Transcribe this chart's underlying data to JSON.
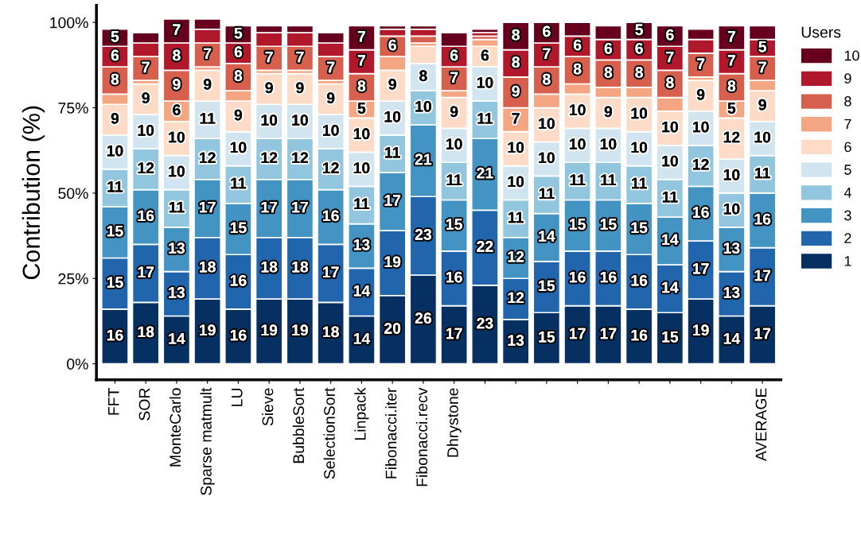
{
  "chart_data": {
    "type": "bar",
    "stacked": true,
    "ylabel": "Contribution (%)",
    "legend_title": "Users",
    "legend": "right",
    "categories": [
      "FFT",
      "SOR",
      "MonteCarlo",
      "Sparse matmult",
      "LU",
      "Sieve",
      "BubbleSort",
      "SelectionSort",
      "Linpack",
      "Fibonacci.iter",
      "Fibonacci.recv",
      "Dhrystone",
      null,
      null,
      null,
      null,
      null,
      null,
      null,
      null,
      null,
      "AVERAGE"
    ],
    "ylim": [
      -4.7,
      105
    ],
    "yticks": [
      {
        "value": 0,
        "label": "0%"
      },
      {
        "value": 25,
        "label": "25%"
      },
      {
        "value": 50,
        "label": "50%"
      },
      {
        "value": 75,
        "label": "75%"
      },
      {
        "value": 100,
        "label": "100%"
      }
    ],
    "grid": false,
    "series": [
      {
        "name": "1",
        "color": "#053061",
        "values": [
          16,
          18,
          14,
          19,
          16,
          19,
          19,
          18,
          14,
          20,
          26,
          17,
          23,
          13,
          15,
          17,
          17,
          16,
          15,
          19,
          14,
          17
        ],
        "value_labels": [
          "16",
          "18",
          "14",
          "19",
          "16",
          "19",
          "19",
          "18",
          "14",
          "20",
          "26",
          "17",
          "23",
          "13",
          "15",
          "17",
          "17",
          "16",
          "15",
          "19",
          "14",
          "17"
        ]
      },
      {
        "name": "2",
        "color": "#2166ac",
        "values": [
          15,
          17,
          13,
          18,
          16,
          18,
          18,
          17,
          14,
          19,
          23,
          16,
          22,
          12,
          15,
          16,
          16,
          16,
          14,
          17,
          13,
          17
        ],
        "value_labels": [
          "15",
          "17",
          "13",
          "18",
          "16",
          "18",
          "18",
          "17",
          "14",
          "19",
          "23",
          "16",
          "22",
          "12",
          "15",
          "16",
          "16",
          "16",
          "14",
          "17",
          "13",
          "17"
        ]
      },
      {
        "name": "3",
        "color": "#4393c3",
        "values": [
          15,
          16,
          13,
          17,
          15,
          17,
          17,
          16,
          13,
          17,
          21,
          15,
          21,
          12,
          14,
          15,
          15,
          15,
          14,
          16,
          13,
          16
        ],
        "value_labels": [
          "15",
          "16",
          "13",
          "17",
          "15",
          "17",
          "17",
          "16",
          "13",
          "17",
          "21",
          "15",
          "21",
          "12",
          "14",
          "15",
          "15",
          "15",
          "14",
          "16",
          "13",
          "16"
        ]
      },
      {
        "name": "4",
        "color": "#92c5de",
        "values": [
          11,
          12,
          11,
          12,
          11,
          12,
          12,
          12,
          11,
          11,
          10,
          11,
          11,
          11,
          11,
          11,
          11,
          11,
          11,
          12,
          10,
          11
        ],
        "value_labels": [
          "11",
          "12",
          "11",
          "12",
          "11",
          "12",
          "12",
          "12",
          "11",
          "11",
          "10",
          "11",
          "11",
          "11",
          "11",
          "11",
          "11",
          "11",
          "11",
          "12",
          "10",
          "11"
        ]
      },
      {
        "name": "5",
        "color": "#d1e5f0",
        "values": [
          10,
          10,
          10,
          11,
          10,
          10,
          10,
          10,
          10,
          10,
          8,
          10,
          10,
          10,
          10,
          10,
          10,
          10,
          10,
          10,
          10,
          10
        ],
        "value_labels": [
          "10",
          "10",
          "10",
          "11",
          "10",
          "10",
          "10",
          "10",
          "10",
          "10",
          "8",
          "10",
          "10",
          "10",
          "10",
          "10",
          "10",
          "10",
          "10",
          "10",
          "10",
          "10"
        ]
      },
      {
        "name": "6",
        "color": "#fddbc7",
        "values": [
          9,
          9,
          10,
          9,
          9,
          9,
          9,
          9,
          10,
          9,
          5,
          9,
          6,
          10,
          10,
          10,
          9,
          10,
          10,
          9,
          12,
          9
        ],
        "value_labels": [
          "9",
          "9",
          "10",
          "9",
          "9",
          "9",
          "9",
          "9",
          "10",
          "9",
          null,
          "9",
          "6",
          "10",
          "10",
          "10",
          "9",
          "10",
          "10",
          "9",
          "12",
          "9"
        ]
      },
      {
        "name": "7",
        "color": "#f4a582",
        "values": [
          3,
          1,
          6,
          1,
          3,
          1,
          1,
          1,
          5,
          4,
          1,
          2,
          2,
          7,
          4,
          3,
          3,
          3,
          4,
          1,
          5,
          3
        ],
        "value_labels": [
          null,
          null,
          "6",
          null,
          null,
          null,
          null,
          null,
          "5",
          null,
          null,
          null,
          null,
          "7",
          null,
          null,
          null,
          null,
          null,
          null,
          "5",
          null
        ]
      },
      {
        "name": "8",
        "color": "#d6604d",
        "values": [
          8,
          7,
          9,
          7,
          8,
          7,
          7,
          7,
          8,
          6,
          2,
          7,
          1,
          9,
          8,
          8,
          8,
          8,
          8,
          7,
          8,
          7
        ],
        "value_labels": [
          "8",
          "7",
          "9",
          "7",
          "8",
          "7",
          "7",
          "7",
          "8",
          "6",
          null,
          "7",
          null,
          "9",
          "8",
          "8",
          "8",
          "8",
          "8",
          "7",
          "8",
          "7"
        ]
      },
      {
        "name": "9",
        "color": "#b2182b",
        "values": [
          6,
          4,
          8,
          4,
          6,
          4,
          4,
          4,
          7,
          2,
          2,
          6,
          1,
          8,
          7,
          6,
          6,
          6,
          7,
          4,
          7,
          5
        ],
        "value_labels": [
          "6",
          null,
          "8",
          null,
          "6",
          null,
          null,
          null,
          "7",
          null,
          null,
          "6",
          null,
          "8",
          "7",
          "6",
          "6",
          "6",
          "7",
          null,
          "7",
          "5"
        ]
      },
      {
        "name": "10",
        "color": "#67001f",
        "values": [
          5,
          3,
          7,
          3,
          5,
          2,
          2,
          3,
          7,
          1,
          1,
          4,
          1,
          8,
          6,
          4,
          4,
          5,
          6,
          3,
          7,
          4
        ],
        "value_labels": [
          "5",
          null,
          "7",
          null,
          "5",
          null,
          null,
          null,
          "7",
          null,
          null,
          null,
          null,
          "8",
          "6",
          null,
          null,
          "5",
          "6",
          null,
          "7",
          null
        ]
      }
    ]
  }
}
